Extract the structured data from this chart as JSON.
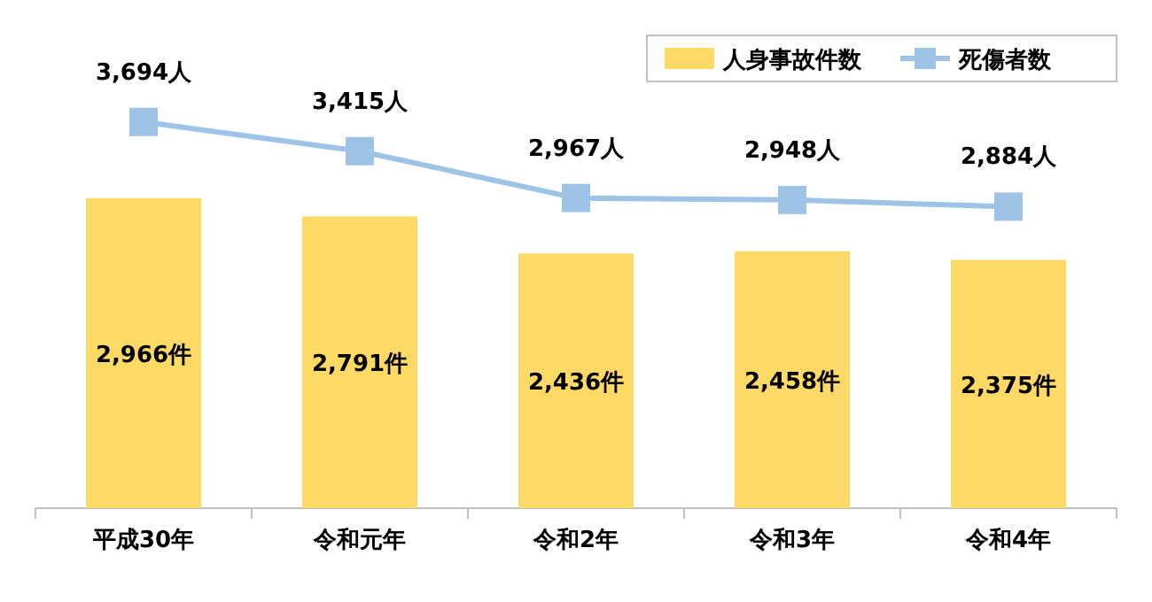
{
  "chart_data": {
    "type": "bar",
    "categories": [
      "平成30年",
      "令和元年",
      "令和2年",
      "令和3年",
      "令和4年"
    ],
    "series": [
      {
        "name": "人身事故件数",
        "color": "#ffd966",
        "values": [
          2966,
          2791,
          2436,
          2458,
          2375
        ],
        "value_labels": [
          "2,966件",
          "2,791件",
          "2,436件",
          "2,458件",
          "2,375件"
        ]
      },
      {
        "name": "死傷者数",
        "type": "line",
        "color": "#9dc3e6",
        "values": [
          3694,
          3415,
          2967,
          2948,
          2884
        ],
        "value_labels": [
          "3,694人",
          "3,415人",
          "2,967人",
          "2,948人",
          "2,884人"
        ]
      }
    ],
    "marker": "square",
    "line_style": "solid",
    "legend": "top right"
  }
}
